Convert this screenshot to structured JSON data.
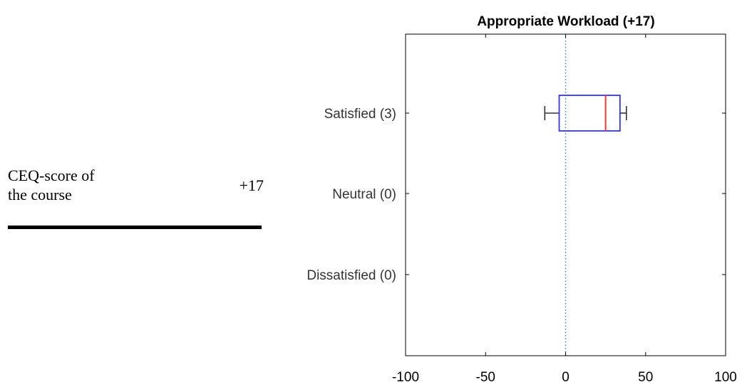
{
  "score": {
    "label": "CEQ-score of\nthe course",
    "value": "+17"
  },
  "chart_data": {
    "type": "boxplot",
    "orientation": "horizontal",
    "title": "Appropriate Workload (+17)",
    "xlabel": "",
    "ylabel": "",
    "xlim": [
      -100,
      100
    ],
    "xticks": [
      -100,
      -50,
      0,
      50,
      100
    ],
    "grid": false,
    "legend": "none",
    "reference_line": {
      "x": 0,
      "style": "dotted",
      "color": "#2f7fb5"
    },
    "categories": [
      "Satisfied (3)",
      "Neutral (0)",
      "Dissatisfied (0)"
    ],
    "boxes": [
      {
        "category": "Satisfied (3)",
        "whisker_low": -13,
        "q1": -4,
        "median": 25,
        "q3": 34,
        "whisker_high": 38
      },
      null,
      null
    ],
    "colors": {
      "box": "#3333ff",
      "median": "#ff3333",
      "whisker": "#333333",
      "axis": "#000000",
      "reference": "#2f7fb5"
    }
  }
}
